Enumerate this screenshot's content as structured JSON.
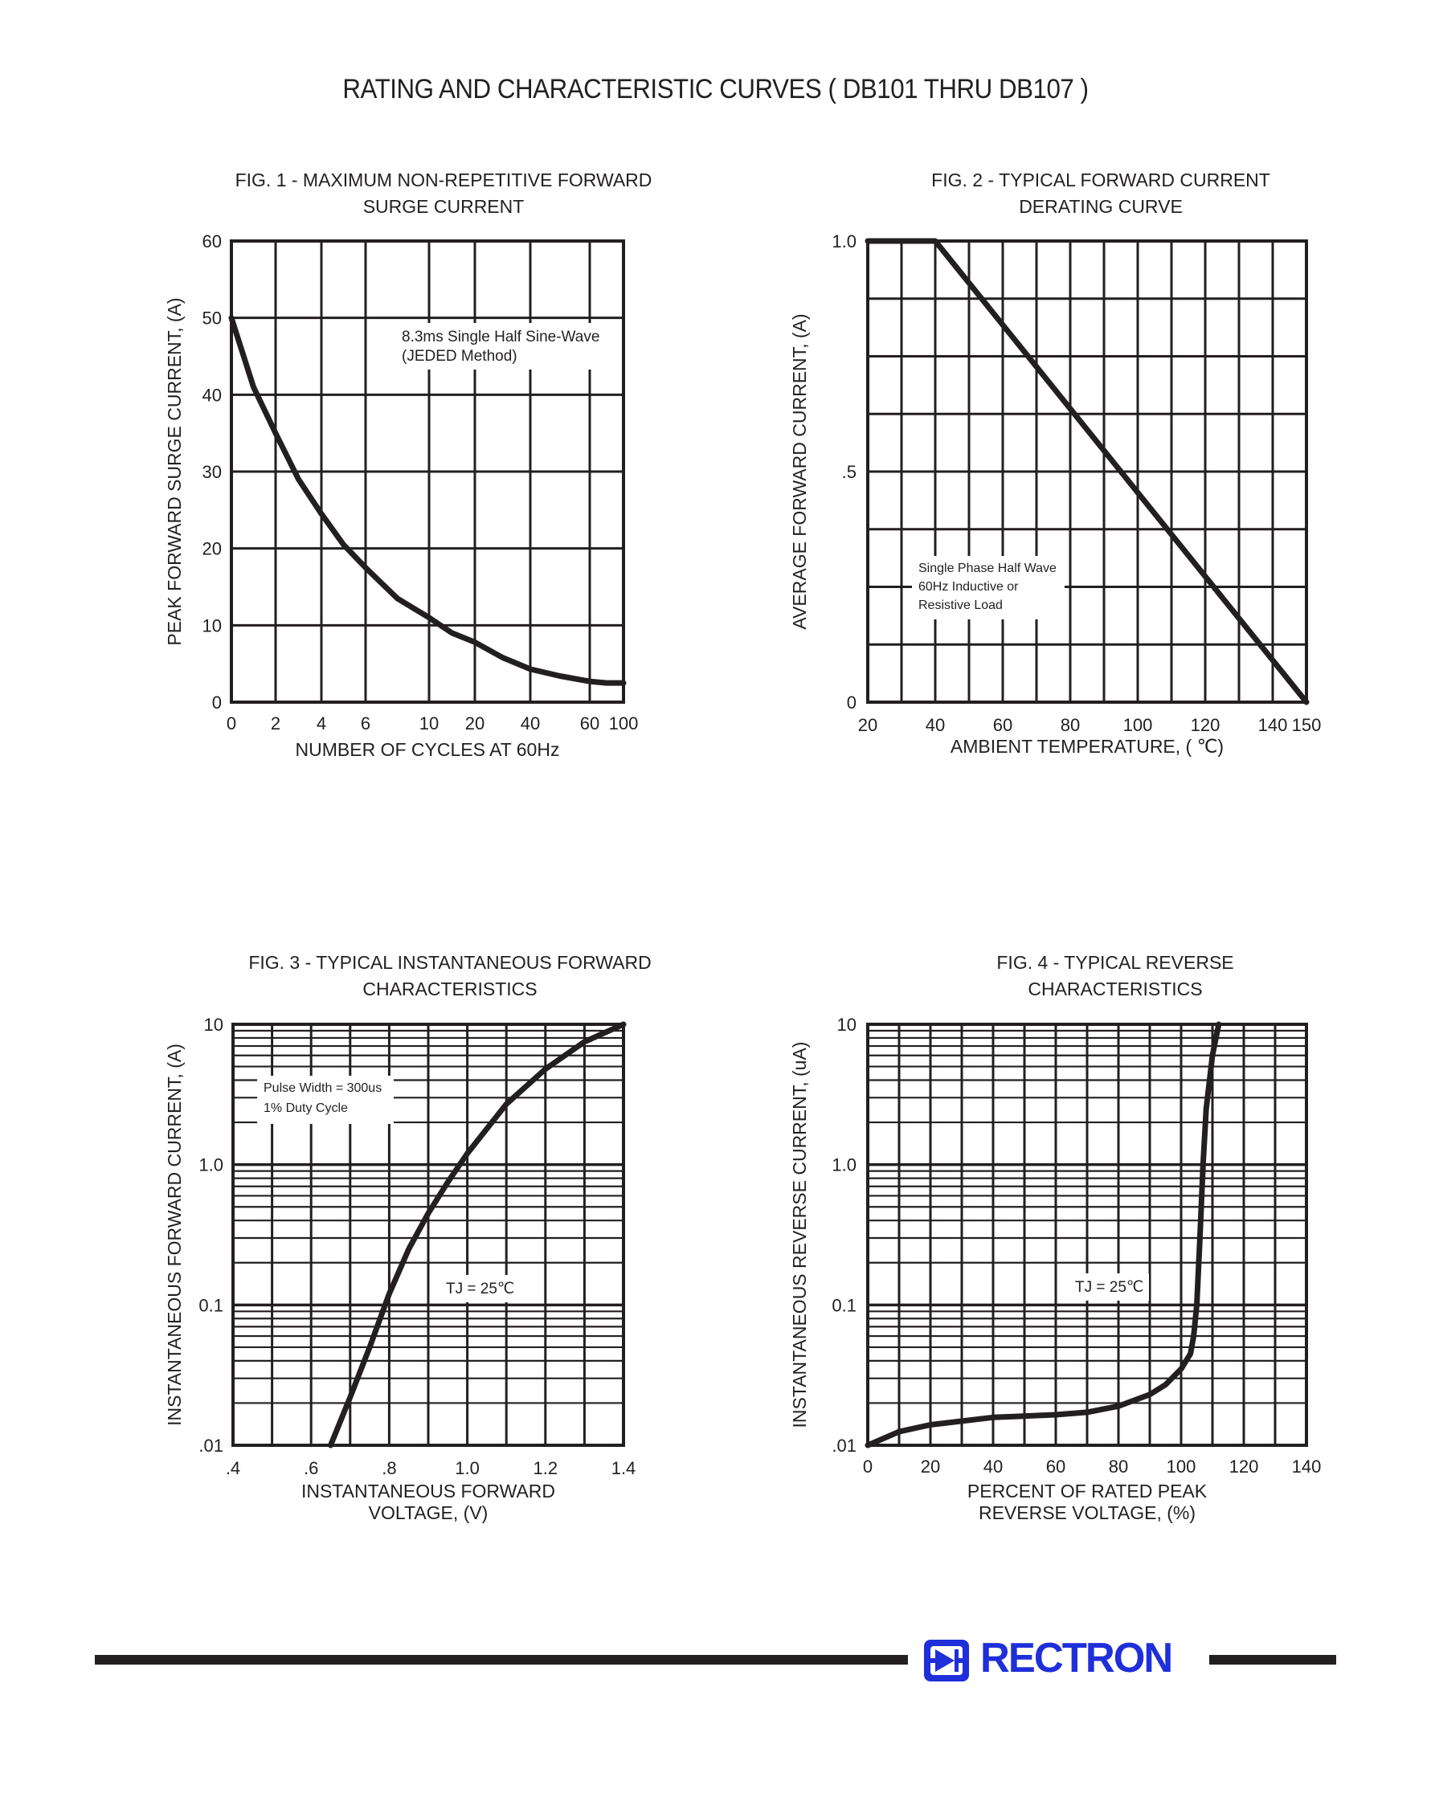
{
  "page": {
    "title": "RATING AND CHARACTERISTIC CURVES ( DB101 THRU DB107 )"
  },
  "footer": {
    "brand": "RECTRON",
    "brand_color": "#1f2fd9"
  },
  "chart_data": [
    {
      "id": "fig1",
      "type": "line",
      "title": [
        "FIG. 1 - MAXIMUM NON-REPETITIVE FORWARD",
        "SURGE CURRENT"
      ],
      "xlabel": [
        "NUMBER OF CYCLES AT 60Hz"
      ],
      "ylabel": "PEAK FORWARD SURGE CURRENT, (A)",
      "xscale": "log (non-uniform)",
      "yscale": "linear",
      "xticks": [
        "0",
        "2",
        "4",
        "6",
        "10",
        "20",
        "40",
        "60",
        "100"
      ],
      "yticks": [
        "0",
        "10",
        "20",
        "30",
        "40",
        "50",
        "60"
      ],
      "ylim": [
        0,
        60
      ],
      "grid": true,
      "annotations": [
        [
          "8.3ms Single Half Sine-Wave",
          "(JEDED Method)"
        ]
      ],
      "series": [
        {
          "x": [
            0,
            1,
            2,
            3,
            4,
            5,
            6,
            8,
            10,
            15,
            20,
            30,
            40,
            50,
            60,
            80,
            100
          ],
          "y": [
            50,
            41,
            35,
            29,
            24.5,
            20.5,
            17.5,
            13.5,
            11,
            9,
            7.8,
            5.8,
            4.3,
            3.4,
            2.7,
            2.5,
            2.5
          ]
        }
      ]
    },
    {
      "id": "fig2",
      "type": "line",
      "title": [
        "FIG. 2 - TYPICAL FORWARD CURRENT",
        "DERATING CURVE"
      ],
      "xlabel": [
        "AMBIENT TEMPERATURE, ( ℃)"
      ],
      "ylabel": "AVERAGE FORWARD CURRENT, (A)",
      "xscale": "linear",
      "yscale": "linear",
      "xticks": [
        "20",
        "40",
        "60",
        "80",
        "100",
        "120",
        "140",
        "150"
      ],
      "yticks": [
        "0",
        ".5",
        "1.0"
      ],
      "xlim": [
        20,
        150
      ],
      "ylim": [
        0,
        1.0
      ],
      "grid": true,
      "annotations": [
        [
          "Single Phase Half Wave",
          "60Hz Inductive or",
          "Resistive Load"
        ]
      ],
      "series": [
        {
          "x": [
            20,
            40,
            150
          ],
          "y": [
            1.0,
            1.0,
            0
          ]
        }
      ]
    },
    {
      "id": "fig3",
      "type": "line",
      "title": [
        "FIG. 3 - TYPICAL INSTANTANEOUS FORWARD",
        "CHARACTERISTICS"
      ],
      "xlabel": [
        "INSTANTANEOUS FORWARD",
        "VOLTAGE, (V)"
      ],
      "ylabel": "INSTANTANEOUS FORWARD CURRENT, (A)",
      "xscale": "linear",
      "yscale": "log",
      "xticks": [
        ".4",
        ".6",
        ".8",
        "1.0",
        "1.2",
        "1.4"
      ],
      "yticks": [
        ".01",
        "0.1",
        "1.0",
        "10"
      ],
      "xlim": [
        0.4,
        1.4
      ],
      "ylim": [
        0.01,
        10
      ],
      "grid": true,
      "annotations": [
        [
          "Pulse Width = 300us",
          "1% Duty Cycle"
        ],
        [
          "TJ = 25℃"
        ]
      ],
      "series": [
        {
          "x": [
            0.65,
            0.7,
            0.75,
            0.8,
            0.85,
            0.9,
            0.95,
            1.0,
            1.1,
            1.2,
            1.3,
            1.4
          ],
          "y": [
            0.01,
            0.022,
            0.05,
            0.12,
            0.25,
            0.45,
            0.75,
            1.2,
            2.7,
            4.8,
            7.5,
            10
          ]
        }
      ]
    },
    {
      "id": "fig4",
      "type": "line",
      "title": [
        "FIG. 4 - TYPICAL REVERSE",
        "CHARACTERISTICS"
      ],
      "xlabel": [
        "PERCENT OF RATED PEAK",
        "REVERSE VOLTAGE, (%)"
      ],
      "ylabel": "INSTANTANEOUS REVERSE CURRENT, (uA)",
      "xscale": "linear",
      "yscale": "log",
      "xticks": [
        "0",
        "20",
        "40",
        "60",
        "80",
        "100",
        "120",
        "140"
      ],
      "yticks": [
        ".01",
        "0.1",
        "1.0",
        "10"
      ],
      "xlim": [
        0,
        140
      ],
      "ylim": [
        0.01,
        10
      ],
      "grid": true,
      "annotations": [
        [
          "TJ = 25℃"
        ]
      ],
      "series": [
        {
          "x": [
            0,
            10,
            20,
            40,
            60,
            70,
            80,
            90,
            95,
            100,
            103,
            104,
            105,
            106,
            107,
            108,
            110,
            112
          ],
          "y": [
            0.01,
            0.0125,
            0.014,
            0.0158,
            0.0165,
            0.0172,
            0.019,
            0.023,
            0.027,
            0.035,
            0.045,
            0.06,
            0.1,
            0.3,
            1.0,
            2.5,
            6.0,
            10
          ]
        }
      ]
    }
  ]
}
